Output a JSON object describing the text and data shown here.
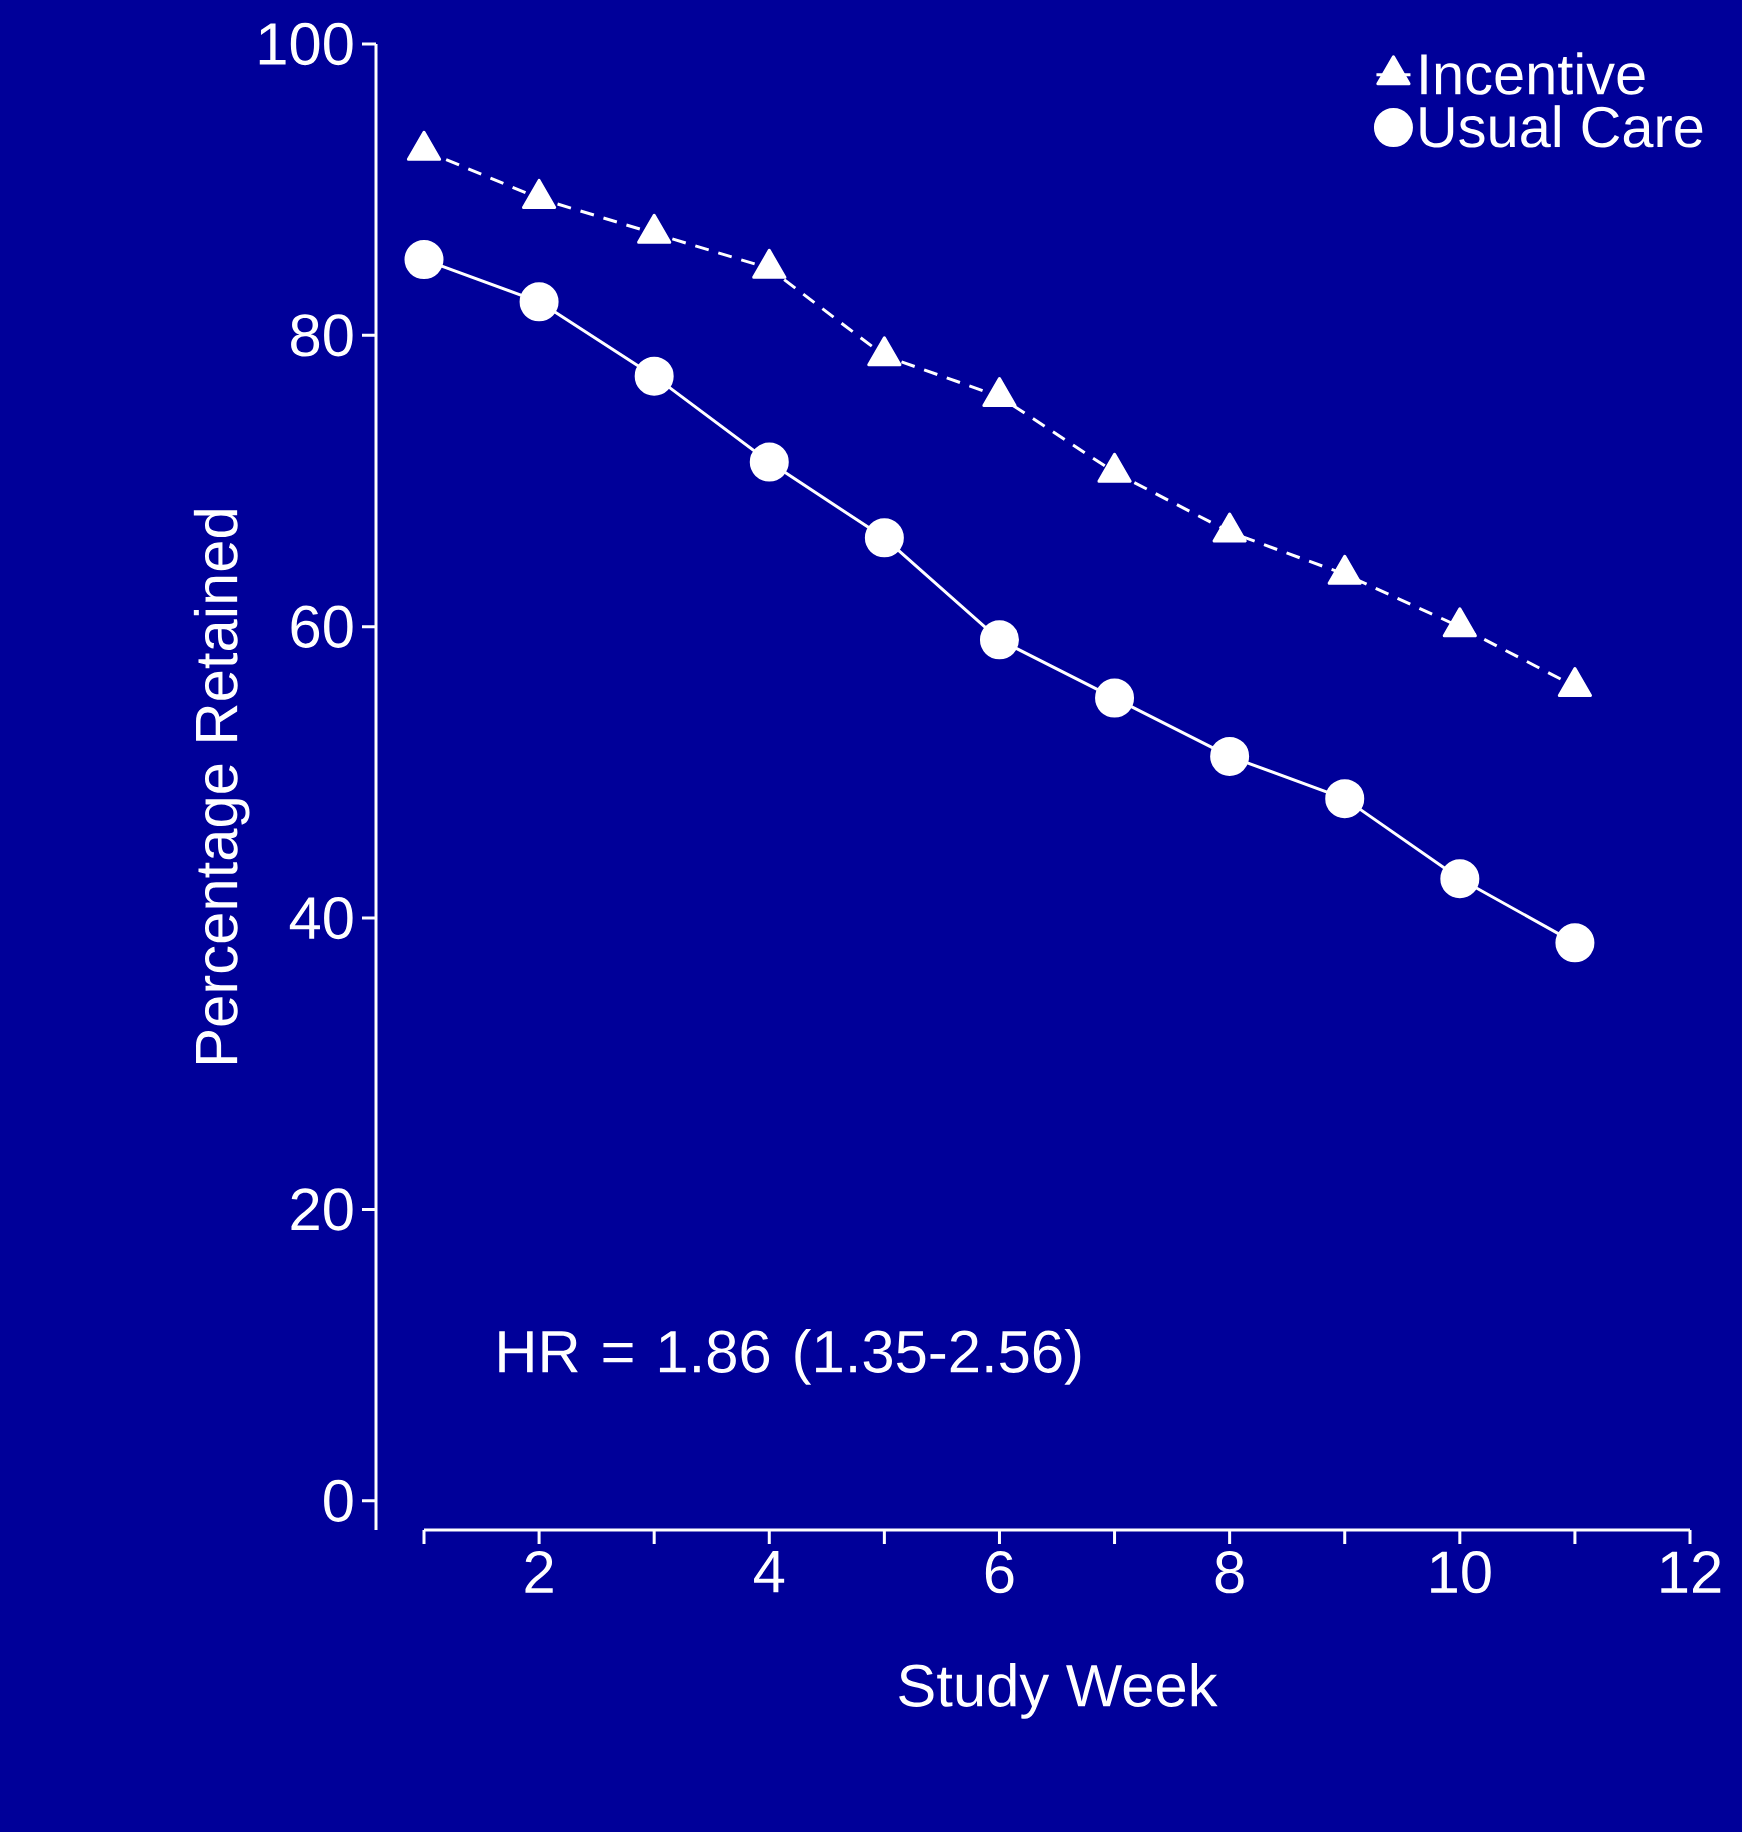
{
  "chart_data": {
    "type": "line",
    "xlabel": "Study Week",
    "ylabel": "Percentage Retained",
    "x": [
      1,
      2,
      3,
      4,
      5,
      6,
      7,
      8,
      9,
      10,
      11
    ],
    "series": [
      {
        "name": "Incentive",
        "color": "#ffffff",
        "marker": "triangle",
        "line_style": "dashed",
        "values": [
          92.7,
          89.4,
          87.0,
          84.6,
          78.6,
          75.8,
          70.6,
          66.5,
          63.6,
          60.0,
          55.9
        ]
      },
      {
        "name": "Usual Care",
        "color": "#ffffff",
        "marker": "circle",
        "line_style": "solid",
        "values": [
          85.2,
          82.3,
          77.2,
          71.3,
          66.1,
          59.1,
          55.1,
          51.1,
          48.2,
          42.7,
          38.3
        ]
      }
    ],
    "xlim": [
      1,
      12
    ],
    "ylim": [
      -2,
      100
    ],
    "xticks": [
      {
        "value": 1,
        "label": null
      },
      2,
      {
        "value": 3,
        "label": null
      },
      4,
      {
        "value": 5,
        "label": null
      },
      6,
      {
        "value": 7,
        "label": null
      },
      8,
      {
        "value": 9,
        "label": null
      },
      10,
      {
        "value": 11,
        "label": null
      },
      12
    ],
    "yticks": [
      0,
      20,
      40,
      60,
      80,
      100
    ],
    "grid": false,
    "legend": "top right",
    "annotations": [
      "HR = 1.86 (1.35-2.56)"
    ]
  }
}
